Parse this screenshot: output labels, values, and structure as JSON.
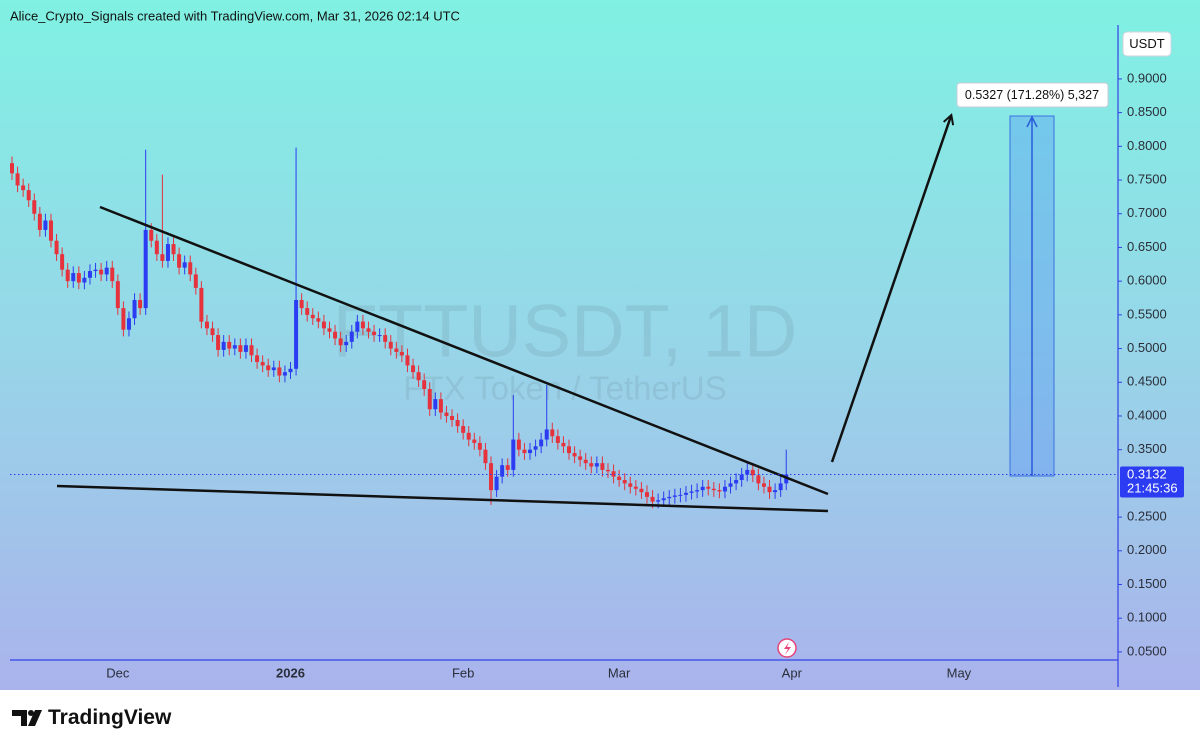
{
  "chart_data": {
    "type": "candlestick",
    "attribution": "Alice_Crypto_Signals created with TradingView.com, Mar 31, 2026 02:14 UTC",
    "currency": "USDT",
    "watermark_symbol": "FTTUSDT, 1D",
    "watermark_description": "FTX Token / TetherUS",
    "measure_label": "0.5327 (171.28%) 5,327",
    "last_price": 0.3132,
    "countdown": "21:45:36",
    "brand": "TradingView",
    "up_color": "#2b3cf2",
    "down_color": "#e5323d",
    "grid": false,
    "ylim": [
      0.038,
      0.98
    ],
    "yticks": [
      {
        "value": 0.05,
        "label": "0.0500"
      },
      {
        "value": 0.1,
        "label": "0.1000"
      },
      {
        "value": 0.15,
        "label": "0.1500"
      },
      {
        "value": 0.2,
        "label": "0.2000"
      },
      {
        "value": 0.25,
        "label": "0.2500"
      },
      {
        "value": 0.35,
        "label": "0.3500"
      },
      {
        "value": 0.4,
        "label": "0.4000"
      },
      {
        "value": 0.45,
        "label": "0.4500"
      },
      {
        "value": 0.5,
        "label": "0.5000"
      },
      {
        "value": 0.55,
        "label": "0.5500"
      },
      {
        "value": 0.6,
        "label": "0.6000"
      },
      {
        "value": 0.65,
        "label": "0.6500"
      },
      {
        "value": 0.7,
        "label": "0.7000"
      },
      {
        "value": 0.75,
        "label": "0.7500"
      },
      {
        "value": 0.8,
        "label": "0.8000"
      },
      {
        "value": 0.85,
        "label": "0.8500"
      },
      {
        "value": 0.9,
        "label": "0.9000"
      }
    ],
    "categories": [
      null,
      null,
      null,
      null,
      null,
      null,
      null,
      null,
      null,
      null,
      null,
      null,
      null,
      null,
      null,
      null,
      null,
      null,
      null,
      "Dec",
      null,
      null,
      null,
      null,
      null,
      null,
      null,
      null,
      null,
      null,
      null,
      null,
      null,
      null,
      null,
      null,
      null,
      null,
      null,
      null,
      null,
      null,
      null,
      null,
      null,
      null,
      null,
      null,
      null,
      null,
      "2026",
      null,
      null,
      null,
      null,
      null,
      null,
      null,
      null,
      null,
      null,
      null,
      null,
      null,
      null,
      null,
      null,
      null,
      null,
      null,
      null,
      null,
      null,
      null,
      null,
      null,
      null,
      null,
      null,
      null,
      null,
      "Feb",
      null,
      null,
      null,
      null,
      null,
      null,
      null,
      null,
      null,
      null,
      null,
      null,
      null,
      null,
      null,
      null,
      null,
      null,
      null,
      null,
      null,
      null,
      null,
      null,
      null,
      null,
      null,
      "Mar",
      null,
      null,
      null,
      null,
      null,
      null,
      null,
      null,
      null,
      null,
      null,
      null,
      null,
      null,
      null,
      null,
      null,
      null,
      null,
      null,
      null,
      null,
      null,
      null,
      null,
      null,
      null,
      null,
      null,
      null,
      "Apr",
      null,
      null,
      null,
      null,
      null,
      null,
      null,
      null,
      null,
      null,
      null,
      null,
      null,
      null,
      null,
      null,
      null,
      null,
      null,
      null,
      null,
      null,
      null,
      null,
      null,
      null,
      null,
      null,
      null,
      "May"
    ],
    "open": [
      0.775,
      0.76,
      0.742,
      0.735,
      0.72,
      0.7,
      0.676,
      0.69,
      0.66,
      0.64,
      0.617,
      0.6,
      0.612,
      0.598,
      0.605,
      0.615,
      0.617,
      0.61,
      0.62,
      0.6,
      0.56,
      0.528,
      0.545,
      0.572,
      0.56,
      0.676,
      0.66,
      0.64,
      0.63,
      0.655,
      0.64,
      0.62,
      0.628,
      0.61,
      0.59,
      0.54,
      0.53,
      0.52,
      0.498,
      0.51,
      0.5,
      0.505,
      0.495,
      0.505,
      0.49,
      0.48,
      0.475,
      0.468,
      0.472,
      0.46,
      0.465,
      0.47,
      0.572,
      0.56,
      0.55,
      0.545,
      0.54,
      0.53,
      0.525,
      0.515,
      0.505,
      0.51,
      0.525,
      0.54,
      0.53,
      0.525,
      0.52,
      0.52,
      0.51,
      0.5,
      0.495,
      0.49,
      0.475,
      0.465,
      0.453,
      0.44,
      0.41,
      0.425,
      0.405,
      0.4,
      0.394,
      0.385,
      0.375,
      0.365,
      0.36,
      0.35,
      0.33,
      0.29,
      0.31,
      0.327,
      0.32,
      0.365,
      0.35,
      0.345,
      0.35,
      0.355,
      0.365,
      0.38,
      0.37,
      0.36,
      0.355,
      0.345,
      0.34,
      0.335,
      0.33,
      0.325,
      0.33,
      0.32,
      0.318,
      0.31,
      0.305,
      0.3,
      0.295,
      0.292,
      0.287,
      0.28,
      0.273,
      0.275,
      0.278,
      0.28,
      0.282,
      0.283,
      0.286,
      0.288,
      0.29,
      0.295,
      0.292,
      0.29,
      0.288,
      0.295,
      0.3,
      0.305,
      0.313,
      0.32,
      0.312,
      0.3,
      0.295,
      0.287,
      0.29,
      0.3,
      null,
      null,
      null,
      null,
      null,
      null,
      null,
      null,
      null,
      null,
      null,
      null,
      null,
      null,
      null,
      null,
      null,
      null,
      null,
      null,
      null,
      null,
      null,
      null,
      null,
      null,
      null,
      null,
      null,
      null,
      null
    ],
    "high": [
      0.785,
      0.77,
      0.752,
      0.745,
      0.73,
      0.71,
      0.7,
      0.7,
      0.67,
      0.65,
      0.627,
      0.622,
      0.622,
      0.615,
      0.625,
      0.627,
      0.627,
      0.63,
      0.63,
      0.61,
      0.57,
      0.555,
      0.582,
      0.582,
      0.795,
      0.686,
      0.67,
      0.758,
      0.665,
      0.665,
      0.65,
      0.638,
      0.638,
      0.62,
      0.6,
      0.55,
      0.54,
      0.53,
      0.52,
      0.52,
      0.515,
      0.515,
      0.515,
      0.515,
      0.5,
      0.49,
      0.485,
      0.482,
      0.482,
      0.475,
      0.48,
      0.798,
      0.582,
      0.57,
      0.56,
      0.555,
      0.55,
      0.54,
      0.535,
      0.525,
      0.52,
      0.535,
      0.55,
      0.55,
      0.54,
      0.535,
      0.53,
      0.53,
      0.52,
      0.51,
      0.505,
      0.5,
      0.485,
      0.475,
      0.463,
      0.45,
      0.435,
      0.435,
      0.415,
      0.41,
      0.404,
      0.395,
      0.385,
      0.375,
      0.37,
      0.36,
      0.34,
      0.32,
      0.337,
      0.337,
      0.431,
      0.375,
      0.36,
      0.36,
      0.365,
      0.375,
      0.446,
      0.39,
      0.38,
      0.37,
      0.365,
      0.355,
      0.35,
      0.345,
      0.34,
      0.34,
      0.34,
      0.33,
      0.328,
      0.32,
      0.315,
      0.31,
      0.305,
      0.302,
      0.297,
      0.29,
      0.285,
      0.288,
      0.29,
      0.292,
      0.293,
      0.296,
      0.298,
      0.3,
      0.305,
      0.305,
      0.302,
      0.3,
      0.305,
      0.31,
      0.315,
      0.323,
      0.33,
      0.33,
      0.322,
      0.31,
      0.305,
      0.3,
      0.31,
      0.35,
      null,
      null,
      null,
      null,
      null,
      null,
      null,
      null,
      null,
      null,
      null,
      null,
      null,
      null,
      null,
      null,
      null,
      null,
      null,
      null,
      null,
      null,
      null,
      null,
      null,
      null,
      null,
      null,
      null,
      null,
      null
    ],
    "low": [
      0.75,
      0.732,
      0.725,
      0.71,
      0.69,
      0.666,
      0.666,
      0.65,
      0.63,
      0.607,
      0.59,
      0.59,
      0.588,
      0.588,
      0.595,
      0.605,
      0.6,
      0.6,
      0.59,
      0.55,
      0.518,
      0.518,
      0.535,
      0.55,
      0.55,
      0.65,
      0.63,
      0.62,
      0.62,
      0.63,
      0.61,
      0.61,
      0.6,
      0.58,
      0.53,
      0.52,
      0.51,
      0.488,
      0.488,
      0.49,
      0.49,
      0.485,
      0.485,
      0.48,
      0.47,
      0.465,
      0.458,
      0.458,
      0.45,
      0.45,
      0.455,
      0.46,
      0.55,
      0.54,
      0.535,
      0.53,
      0.52,
      0.515,
      0.505,
      0.495,
      0.495,
      0.5,
      0.515,
      0.52,
      0.515,
      0.51,
      0.51,
      0.5,
      0.49,
      0.485,
      0.48,
      0.465,
      0.455,
      0.443,
      0.43,
      0.4,
      0.4,
      0.395,
      0.39,
      0.384,
      0.375,
      0.365,
      0.355,
      0.35,
      0.34,
      0.32,
      0.268,
      0.28,
      0.3,
      0.31,
      0.31,
      0.34,
      0.335,
      0.335,
      0.34,
      0.345,
      0.355,
      0.36,
      0.35,
      0.345,
      0.335,
      0.33,
      0.325,
      0.32,
      0.315,
      0.315,
      0.31,
      0.308,
      0.3,
      0.295,
      0.29,
      0.285,
      0.282,
      0.277,
      0.27,
      0.263,
      0.263,
      0.265,
      0.268,
      0.27,
      0.272,
      0.273,
      0.276,
      0.278,
      0.28,
      0.282,
      0.28,
      0.278,
      0.278,
      0.285,
      0.29,
      0.295,
      0.303,
      0.302,
      0.29,
      0.285,
      0.277,
      0.277,
      0.28,
      0.29,
      null,
      null,
      null,
      null,
      null,
      null,
      null,
      null,
      null,
      null,
      null,
      null,
      null,
      null,
      null,
      null,
      null,
      null,
      null,
      null,
      null,
      null,
      null,
      null,
      null,
      null,
      null,
      null,
      null,
      null,
      null
    ],
    "close": [
      0.76,
      0.742,
      0.735,
      0.72,
      0.7,
      0.676,
      0.69,
      0.66,
      0.64,
      0.617,
      0.6,
      0.612,
      0.598,
      0.605,
      0.615,
      0.617,
      0.61,
      0.62,
      0.6,
      0.56,
      0.528,
      0.545,
      0.572,
      0.56,
      0.676,
      0.66,
      0.64,
      0.63,
      0.655,
      0.64,
      0.62,
      0.628,
      0.61,
      0.59,
      0.54,
      0.53,
      0.52,
      0.498,
      0.51,
      0.5,
      0.505,
      0.495,
      0.505,
      0.49,
      0.48,
      0.475,
      0.468,
      0.472,
      0.46,
      0.465,
      0.47,
      0.572,
      0.56,
      0.55,
      0.545,
      0.54,
      0.53,
      0.525,
      0.515,
      0.505,
      0.51,
      0.525,
      0.54,
      0.53,
      0.525,
      0.52,
      0.52,
      0.51,
      0.5,
      0.495,
      0.49,
      0.475,
      0.465,
      0.453,
      0.44,
      0.41,
      0.425,
      0.405,
      0.4,
      0.394,
      0.385,
      0.375,
      0.365,
      0.36,
      0.35,
      0.33,
      0.29,
      0.31,
      0.327,
      0.32,
      0.365,
      0.35,
      0.345,
      0.35,
      0.355,
      0.365,
      0.38,
      0.37,
      0.36,
      0.355,
      0.345,
      0.34,
      0.335,
      0.33,
      0.325,
      0.33,
      0.32,
      0.318,
      0.31,
      0.305,
      0.3,
      0.295,
      0.292,
      0.287,
      0.28,
      0.273,
      0.275,
      0.278,
      0.28,
      0.282,
      0.283,
      0.286,
      0.288,
      0.29,
      0.295,
      0.292,
      0.29,
      0.288,
      0.295,
      0.3,
      0.305,
      0.313,
      0.32,
      0.312,
      0.3,
      0.295,
      0.287,
      0.29,
      0.3,
      0.3132,
      null,
      null,
      null,
      null,
      null,
      null,
      null,
      null,
      null,
      null,
      null,
      null,
      null,
      null,
      null,
      null,
      null,
      null,
      null,
      null,
      null,
      null,
      null,
      null,
      null,
      null,
      null,
      null,
      null,
      null,
      null
    ]
  }
}
